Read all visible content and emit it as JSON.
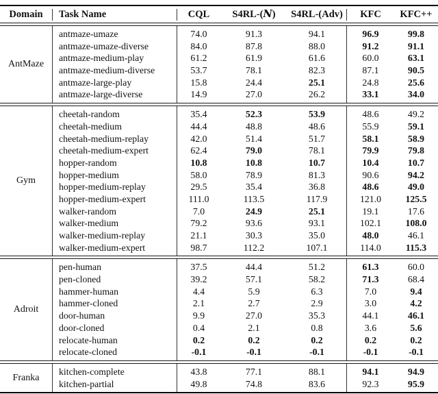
{
  "table": {
    "header": {
      "domain": "Domain",
      "task": "Task Name",
      "cql": "CQL",
      "s4rl_n_prefix": "S4RL-(",
      "s4rl_n_math": "N",
      "s4rl_n_suffix": ")",
      "s4rl_adv": "S4RL-(Adv)",
      "kfc": "KFC",
      "kfcpp": "KFC++"
    },
    "sections": [
      {
        "domain": "AntMaze",
        "rows": [
          {
            "task": "antmaze-umaze",
            "values": [
              "74.0",
              "91.3",
              "94.1",
              "96.9",
              "99.8"
            ],
            "bold": [
              false,
              false,
              false,
              true,
              true
            ]
          },
          {
            "task": "antmaze-umaze-diverse",
            "values": [
              "84.0",
              "87.8",
              "88.0",
              "91.2",
              "91.1"
            ],
            "bold": [
              false,
              false,
              false,
              true,
              true
            ]
          },
          {
            "task": "antmaze-medium-play",
            "values": [
              "61.2",
              "61.9",
              "61.6",
              "60.0",
              "63.1"
            ],
            "bold": [
              false,
              false,
              false,
              false,
              true
            ]
          },
          {
            "task": "antmaze-medium-diverse",
            "values": [
              "53.7",
              "78.1",
              "82.3",
              "87.1",
              "90.5"
            ],
            "bold": [
              false,
              false,
              false,
              false,
              true
            ]
          },
          {
            "task": "antmaze-large-play",
            "values": [
              "15.8",
              "24.4",
              "25.1",
              "24.8",
              "25.6"
            ],
            "bold": [
              false,
              false,
              true,
              false,
              true
            ]
          },
          {
            "task": "antmaze-large-diverse",
            "values": [
              "14.9",
              "27.0",
              "26.2",
              "33.1",
              "34.0"
            ],
            "bold": [
              false,
              false,
              false,
              true,
              true
            ]
          }
        ]
      },
      {
        "domain": "Gym",
        "rows": [
          {
            "task": "cheetah-random",
            "values": [
              "35.4",
              "52.3",
              "53.9",
              "48.6",
              "49.2"
            ],
            "bold": [
              false,
              true,
              true,
              false,
              false
            ]
          },
          {
            "task": "cheetah-medium",
            "values": [
              "44.4",
              "48.8",
              "48.6",
              "55.9",
              "59.1"
            ],
            "bold": [
              false,
              false,
              false,
              false,
              true
            ]
          },
          {
            "task": "cheetah-medium-replay",
            "values": [
              "42.0",
              "51.4",
              "51.7",
              "58.1",
              "58.9"
            ],
            "bold": [
              false,
              false,
              false,
              true,
              true
            ]
          },
          {
            "task": "cheetah-medium-expert",
            "values": [
              "62.4",
              "79.0",
              "78.1",
              "79.9",
              "79.8"
            ],
            "bold": [
              false,
              true,
              false,
              true,
              true
            ]
          },
          {
            "task": "hopper-random",
            "values": [
              "10.8",
              "10.8",
              "10.7",
              "10.4",
              "10.7"
            ],
            "bold": [
              true,
              true,
              true,
              true,
              true
            ]
          },
          {
            "task": "hopper-medium",
            "values": [
              "58.0",
              "78.9",
              "81.3",
              "90.6",
              "94.2"
            ],
            "bold": [
              false,
              false,
              false,
              false,
              true
            ]
          },
          {
            "task": "hopper-medium-replay",
            "values": [
              "29.5",
              "35.4",
              "36.8",
              "48.6",
              "49.0"
            ],
            "bold": [
              false,
              false,
              false,
              true,
              true
            ]
          },
          {
            "task": "hopper-medium-expert",
            "values": [
              "111.0",
              "113.5",
              "117.9",
              "121.0",
              "125.5"
            ],
            "bold": [
              false,
              false,
              false,
              false,
              true
            ]
          },
          {
            "task": "walker-random",
            "values": [
              "7.0",
              "24.9",
              "25.1",
              "19.1",
              "17.6"
            ],
            "bold": [
              false,
              true,
              true,
              false,
              false
            ]
          },
          {
            "task": "walker-medium",
            "values": [
              "79.2",
              "93.6",
              "93.1",
              "102.1",
              "108.0"
            ],
            "bold": [
              false,
              false,
              false,
              false,
              true
            ]
          },
          {
            "task": "walker-medium-replay",
            "values": [
              "21.1",
              "30.3",
              "35.0",
              "48.0",
              "46.1"
            ],
            "bold": [
              false,
              false,
              false,
              true,
              false
            ]
          },
          {
            "task": "walker-medium-expert",
            "values": [
              "98.7",
              "112.2",
              "107.1",
              "114.0",
              "115.3"
            ],
            "bold": [
              false,
              false,
              false,
              false,
              true
            ]
          }
        ]
      },
      {
        "domain": "Adroit",
        "rows": [
          {
            "task": "pen-human",
            "values": [
              "37.5",
              "44.4",
              "51.2",
              "61.3",
              "60.0"
            ],
            "bold": [
              false,
              false,
              false,
              true,
              false
            ]
          },
          {
            "task": "pen-cloned",
            "values": [
              "39.2",
              "57.1",
              "58.2",
              "71.3",
              "68.4"
            ],
            "bold": [
              false,
              false,
              false,
              true,
              false
            ]
          },
          {
            "task": "hammer-human",
            "values": [
              "4.4",
              "5.9",
              "6.3",
              "7.0",
              "9.4"
            ],
            "bold": [
              false,
              false,
              false,
              false,
              true
            ]
          },
          {
            "task": "hammer-cloned",
            "values": [
              "2.1",
              "2.7",
              "2.9",
              "3.0",
              "4.2"
            ],
            "bold": [
              false,
              false,
              false,
              false,
              true
            ]
          },
          {
            "task": "door-human",
            "values": [
              "9.9",
              "27.0",
              "35.3",
              "44.1",
              "46.1"
            ],
            "bold": [
              false,
              false,
              false,
              false,
              true
            ]
          },
          {
            "task": "door-cloned",
            "values": [
              "0.4",
              "2.1",
              "0.8",
              "3.6",
              "5.6"
            ],
            "bold": [
              false,
              false,
              false,
              false,
              true
            ]
          },
          {
            "task": "relocate-human",
            "values": [
              "0.2",
              "0.2",
              "0.2",
              "0.2",
              "0.2"
            ],
            "bold": [
              true,
              true,
              true,
              true,
              true
            ]
          },
          {
            "task": "relocate-cloned",
            "values": [
              "-0.1",
              "-0.1",
              "-0.1",
              "-0.1",
              "-0.1"
            ],
            "bold": [
              true,
              true,
              true,
              true,
              true
            ]
          }
        ]
      },
      {
        "domain": "Franka",
        "rows": [
          {
            "task": "kitchen-complete",
            "values": [
              "43.8",
              "77.1",
              "88.1",
              "94.1",
              "94.9"
            ],
            "bold": [
              false,
              false,
              false,
              true,
              true
            ]
          },
          {
            "task": "kitchen-partial",
            "values": [
              "49.8",
              "74.8",
              "83.6",
              "92.3",
              "95.9"
            ],
            "bold": [
              false,
              false,
              false,
              false,
              true
            ]
          }
        ]
      }
    ]
  }
}
